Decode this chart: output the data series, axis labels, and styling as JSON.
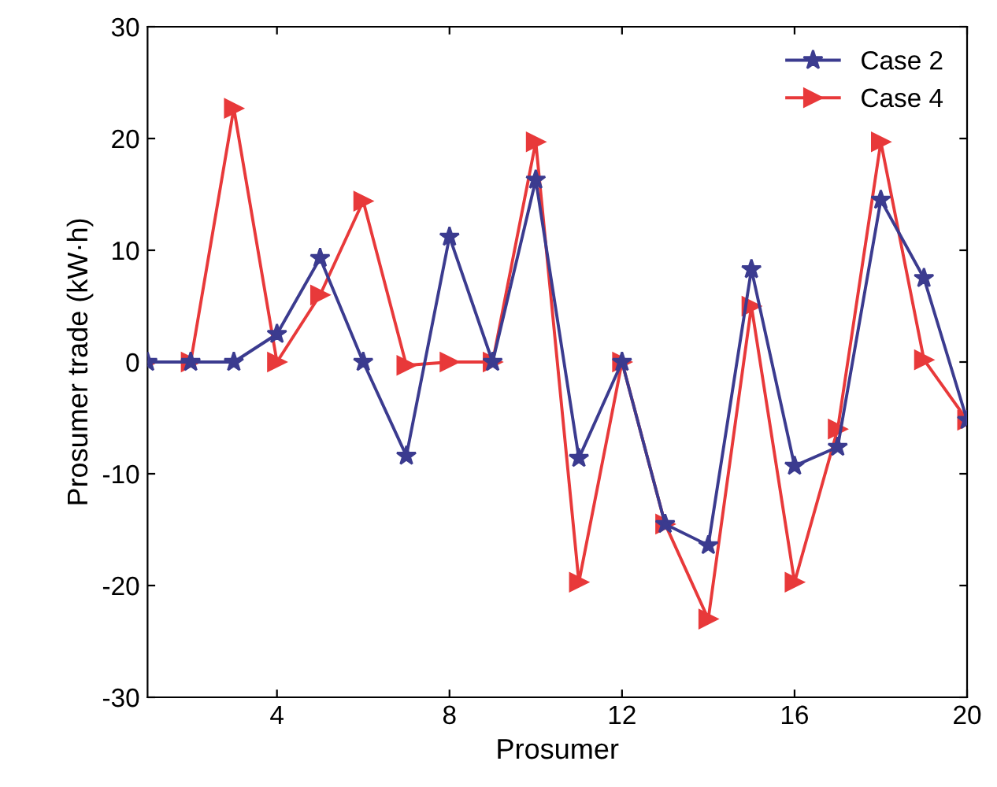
{
  "chart_data": {
    "type": "line",
    "xlabel": "Prosumer",
    "ylabel": "Prosumer trade (kW·h)",
    "x": [
      1,
      2,
      3,
      4,
      5,
      6,
      7,
      8,
      9,
      10,
      11,
      12,
      13,
      14,
      15,
      16,
      17,
      18,
      19,
      20
    ],
    "series": [
      {
        "name": "Case 2",
        "color": "#3b3b8f",
        "marker": "star",
        "values": [
          0,
          0,
          0,
          2.5,
          9.3,
          0,
          -8.4,
          11.2,
          0,
          16.3,
          -8.6,
          0,
          -14.5,
          -16.4,
          8.3,
          -9.3,
          -7.6,
          14.5,
          7.5,
          -5.2
        ]
      },
      {
        "name": "Case 4",
        "color": "#e8393a",
        "marker": "triangle",
        "values": [
          0,
          0,
          22.7,
          0,
          6,
          14.4,
          -0.3,
          0,
          0,
          19.7,
          -19.7,
          0,
          -14.5,
          -23,
          5,
          -19.7,
          -6,
          19.7,
          0.2,
          -5.2
        ]
      }
    ],
    "xlim": [
      1,
      20
    ],
    "xticks": [
      4,
      8,
      12,
      16,
      20
    ],
    "ylim": [
      -30,
      30
    ],
    "yticks": [
      -30,
      -20,
      -10,
      0,
      10,
      20,
      30
    ],
    "grid": false,
    "legend": "top right",
    "line_style": "solid"
  }
}
